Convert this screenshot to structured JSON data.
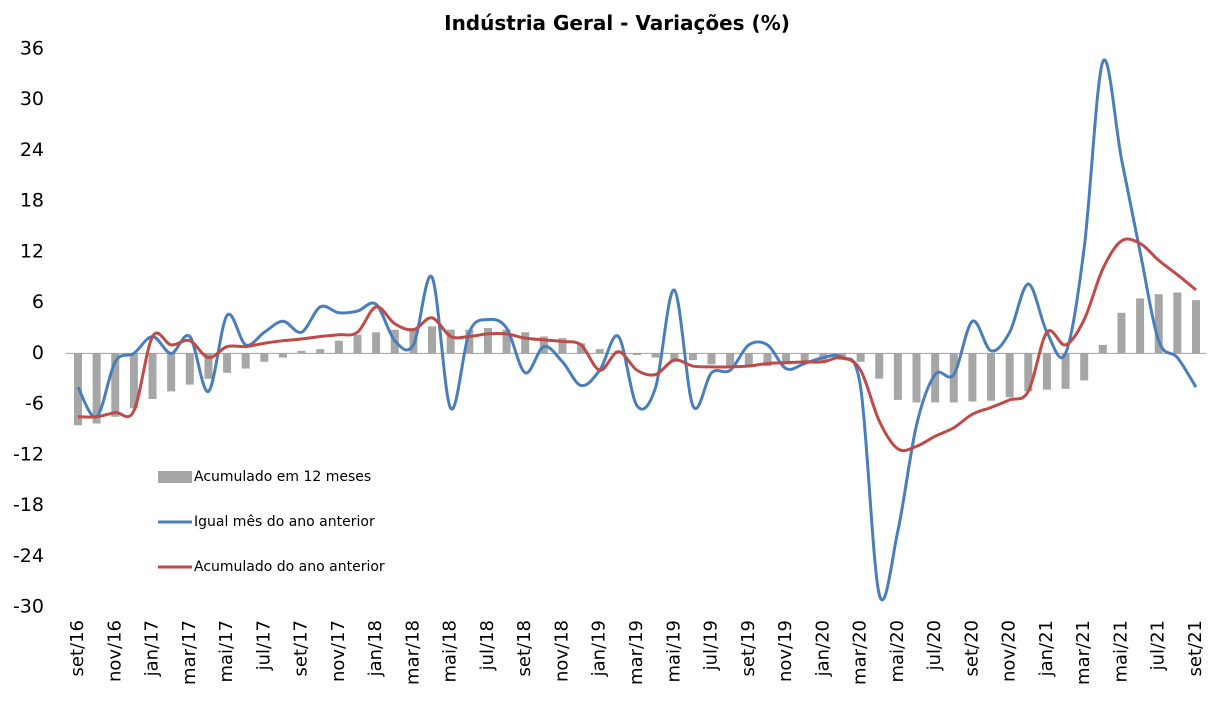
{
  "chart_data": {
    "type": "combo",
    "title": "Indústria Geral - Variações (%)",
    "categories": [
      "set/16",
      null,
      "nov/16",
      null,
      "jan/17",
      null,
      "mar/17",
      null,
      "mai/17",
      null,
      "jul/17",
      null,
      "set/17",
      null,
      "nov/17",
      null,
      "jan/18",
      null,
      "mar/18",
      null,
      "mai/18",
      null,
      "jul/18",
      null,
      "set/18",
      null,
      "nov/18",
      null,
      "jan/19",
      null,
      "mar/19",
      null,
      "mai/19",
      null,
      "jul/19",
      null,
      "set/19",
      null,
      "nov/19",
      null,
      "jan/20",
      null,
      "mar/20",
      null,
      "mai/20",
      null,
      "jul/20",
      null,
      "set/20",
      null,
      "nov/20",
      null,
      "jan/21",
      null,
      "mar/21",
      null,
      "mai/21",
      null,
      "jul/21",
      null,
      "set/21"
    ],
    "series": [
      {
        "name": "Acumulado em 12 meses",
        "kind": "bar",
        "color": "#a6a6a6",
        "values": [
          -8.5,
          -8.3,
          -7.5,
          -6.5,
          -5.4,
          -4.5,
          -3.7,
          -3,
          -2.3,
          -1.8,
          -1,
          -0.5,
          0.3,
          0.5,
          1.5,
          2.2,
          2.5,
          2.8,
          3,
          3.2,
          2.8,
          2.8,
          3,
          2.8,
          2.5,
          2,
          1.8,
          1.2,
          0.5,
          0.3,
          -0.2,
          -0.5,
          -1,
          -0.8,
          -1.3,
          -1.5,
          -1.5,
          -1.5,
          -1.3,
          -1.2,
          -1,
          -0.8,
          -1,
          -3,
          -5.5,
          -5.8,
          -5.8,
          -5.8,
          -5.7,
          -5.6,
          -5.2,
          -4.5,
          -4.3,
          -4.2,
          -3.2,
          1,
          4.8,
          6.5,
          7,
          7.2,
          6.3
        ]
      },
      {
        "name": "Igual mês do ano anterior",
        "kind": "line",
        "color": "#4a7ebb",
        "values": [
          -4,
          -7.5,
          -1,
          0,
          2,
          0,
          2,
          -4.5,
          4.5,
          1,
          2.5,
          3.8,
          2.5,
          5.5,
          4.8,
          5,
          5.8,
          1.5,
          1,
          9,
          -6.5,
          2.5,
          4,
          3,
          -2.3,
          0.8,
          -1,
          -3.8,
          -2,
          2,
          -6.2,
          -4,
          7.5,
          -6.2,
          -2.3,
          -2,
          1,
          1,
          -1.8,
          -1.2,
          -0.5,
          -0.5,
          -4,
          -28.5,
          -21,
          -8.5,
          -2.5,
          -2.5,
          3.8,
          0.3,
          2.5,
          8.2,
          2.5,
          0,
          12.5,
          34.5,
          23,
          12,
          1.5,
          -0.5,
          -4
        ]
      },
      {
        "name": "Acumulado do ano anterior",
        "kind": "line",
        "color": "#be4b48",
        "values": [
          -7.5,
          -7.5,
          -7,
          -6.8,
          2,
          1,
          1.5,
          -0.5,
          0.8,
          0.8,
          1.2,
          1.5,
          1.7,
          2,
          2.2,
          2.5,
          5.5,
          3.5,
          2.8,
          4.2,
          2,
          2,
          2.3,
          2.3,
          1.8,
          1.6,
          1.4,
          1,
          -2,
          0.2,
          -2,
          -2.5,
          -0.8,
          -1.5,
          -1.6,
          -1.6,
          -1.5,
          -1.2,
          -1.1,
          -1,
          -1,
          -0.5,
          -2,
          -8,
          -11.3,
          -11,
          -9.8,
          -8.8,
          -7.2,
          -6.4,
          -5.5,
          -4.5,
          2.5,
          1,
          4,
          10,
          13.3,
          13,
          11,
          9.3,
          7.5
        ]
      }
    ],
    "ylim": [
      -30,
      36
    ],
    "yticks": [
      -30,
      -24,
      -18,
      -12,
      -6,
      0,
      6,
      12,
      18,
      24,
      30,
      36
    ],
    "grid": false,
    "legend": "left"
  }
}
